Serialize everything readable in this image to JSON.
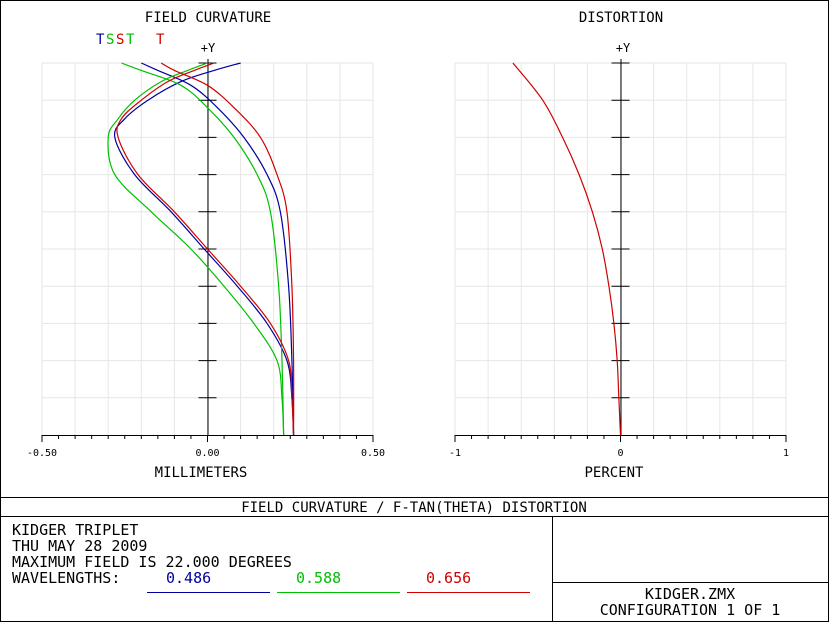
{
  "chart_data": [
    {
      "type": "line",
      "title": "FIELD CURVATURE",
      "xlabel": "MILLIMETERS",
      "ylabel": "+Y",
      "xlim": [
        -0.5,
        0.5
      ],
      "ylim": [
        0,
        1
      ],
      "x_tick_labels": [
        "-0.50",
        "0.00",
        "0.50"
      ],
      "grid": true,
      "legend": [
        "T",
        "S",
        "S",
        "T",
        "T"
      ],
      "series": [
        {
          "name": "T",
          "color": "#0000a0",
          "style": "tangential",
          "wavelength": "0.486",
          "points": [
            [
              0.26,
              0.0
            ],
            [
              0.255,
              0.1
            ],
            [
              0.24,
              0.2
            ],
            [
              0.18,
              0.3
            ],
            [
              0.09,
              0.4
            ],
            [
              -0.01,
              0.5
            ],
            [
              -0.11,
              0.6
            ],
            [
              -0.22,
              0.7
            ],
            [
              -0.28,
              0.8
            ],
            [
              -0.25,
              0.85
            ],
            [
              -0.18,
              0.9
            ],
            [
              -0.08,
              0.95
            ],
            [
              0.02,
              0.98
            ],
            [
              0.1,
              1.0
            ]
          ]
        },
        {
          "name": "S",
          "color": "#0000a0",
          "style": "sagittal",
          "wavelength": "0.486",
          "points": [
            [
              0.26,
              0.0
            ],
            [
              0.255,
              0.2
            ],
            [
              0.245,
              0.4
            ],
            [
              0.22,
              0.6
            ],
            [
              0.18,
              0.7
            ],
            [
              0.11,
              0.8
            ],
            [
              0.03,
              0.88
            ],
            [
              -0.05,
              0.94
            ],
            [
              -0.15,
              0.98
            ],
            [
              -0.2,
              1.0
            ]
          ]
        },
        {
          "name": "S",
          "color": "#00c000",
          "style": "sagittal",
          "wavelength": "0.588",
          "points": [
            [
              0.23,
              0.0
            ],
            [
              0.225,
              0.2
            ],
            [
              0.215,
              0.4
            ],
            [
              0.19,
              0.6
            ],
            [
              0.15,
              0.7
            ],
            [
              0.08,
              0.8
            ],
            [
              0.0,
              0.88
            ],
            [
              -0.08,
              0.94
            ],
            [
              -0.2,
              0.98
            ],
            [
              -0.26,
              1.0
            ]
          ]
        },
        {
          "name": "T",
          "color": "#00c000",
          "style": "tangential",
          "wavelength": "0.588",
          "points": [
            [
              0.23,
              0.0
            ],
            [
              0.225,
              0.1
            ],
            [
              0.21,
              0.2
            ],
            [
              0.14,
              0.3
            ],
            [
              0.05,
              0.4
            ],
            [
              -0.05,
              0.5
            ],
            [
              -0.17,
              0.6
            ],
            [
              -0.28,
              0.7
            ],
            [
              -0.3,
              0.8
            ],
            [
              -0.27,
              0.85
            ],
            [
              -0.22,
              0.9
            ],
            [
              -0.14,
              0.95
            ],
            [
              -0.06,
              0.98
            ],
            [
              0.0,
              1.0
            ]
          ]
        },
        {
          "name": "T",
          "color": "#d00000",
          "style": "tangential",
          "wavelength": "0.656",
          "points": [
            [
              0.26,
              0.0
            ],
            [
              0.255,
              0.1
            ],
            [
              0.245,
              0.2
            ],
            [
              0.19,
              0.3
            ],
            [
              0.1,
              0.4
            ],
            [
              0.0,
              0.5
            ],
            [
              -0.1,
              0.6
            ],
            [
              -0.21,
              0.7
            ],
            [
              -0.27,
              0.8
            ],
            [
              -0.26,
              0.85
            ],
            [
              -0.2,
              0.9
            ],
            [
              -0.12,
              0.95
            ],
            [
              -0.04,
              0.98
            ],
            [
              0.02,
              1.0
            ]
          ]
        },
        {
          "name": "S",
          "color": "#d00000",
          "style": "sagittal",
          "wavelength": "0.656",
          "points": [
            [
              0.26,
              0.0
            ],
            [
              0.26,
              0.2
            ],
            [
              0.255,
              0.4
            ],
            [
              0.24,
              0.6
            ],
            [
              0.21,
              0.7
            ],
            [
              0.16,
              0.8
            ],
            [
              0.08,
              0.88
            ],
            [
              0.0,
              0.94
            ],
            [
              -0.1,
              0.98
            ],
            [
              -0.14,
              1.0
            ]
          ]
        }
      ]
    },
    {
      "type": "line",
      "title": "DISTORTION",
      "xlabel": "PERCENT",
      "ylabel": "+Y",
      "xlim": [
        -1,
        1
      ],
      "ylim": [
        0,
        1
      ],
      "x_tick_labels": [
        "-1",
        "0",
        "1"
      ],
      "grid": true,
      "series": [
        {
          "color": "#d00000",
          "points": [
            [
              0.0,
              0.0
            ],
            [
              -0.01,
              0.1
            ],
            [
              -0.02,
              0.2
            ],
            [
              -0.04,
              0.3
            ],
            [
              -0.07,
              0.4
            ],
            [
              -0.11,
              0.5
            ],
            [
              -0.17,
              0.6
            ],
            [
              -0.25,
              0.7
            ],
            [
              -0.35,
              0.8
            ],
            [
              -0.47,
              0.9
            ],
            [
              -0.65,
              1.0
            ]
          ]
        }
      ]
    }
  ],
  "header": {
    "title": "FIELD CURVATURE / F-TAN(THETA) DISTORTION"
  },
  "info": {
    "line1": "KIDGER TRIPLET",
    "line2": "THU MAY 28 2009",
    "line3": "MAXIMUM FIELD IS 22.000 DEGREES",
    "wavelengths_label": "WAVELENGTHS:",
    "wavelengths": [
      {
        "value": "0.486",
        "color": "#0000a0"
      },
      {
        "value": "0.588",
        "color": "#00c000"
      },
      {
        "value": "0.656",
        "color": "#d00000"
      }
    ]
  },
  "file": {
    "name": "KIDGER.ZMX",
    "configuration": "CONFIGURATION 1 OF 1"
  }
}
